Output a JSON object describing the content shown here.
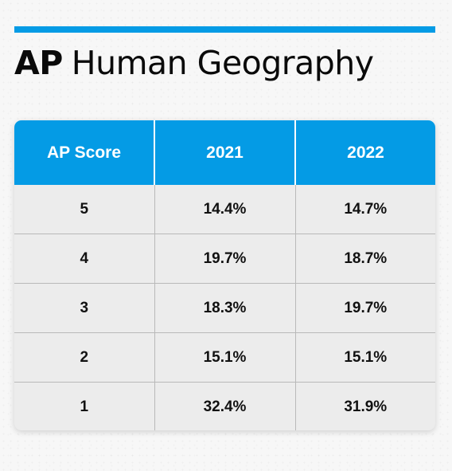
{
  "title": {
    "strong": "AP",
    "rest": "Human Geography"
  },
  "chart_data": {
    "type": "table",
    "columns": [
      "AP Score",
      "2021",
      "2022"
    ],
    "rows": [
      [
        "5",
        "14.4%",
        "14.7%"
      ],
      [
        "4",
        "19.7%",
        "18.7%"
      ],
      [
        "3",
        "18.3%",
        "19.7%"
      ],
      [
        "2",
        "15.1%",
        "15.1%"
      ],
      [
        "1",
        "32.4%",
        "31.9%"
      ]
    ]
  },
  "colors": {
    "accent": "#049be5",
    "row_background": "#ececec",
    "text": "#0a0a0a"
  }
}
